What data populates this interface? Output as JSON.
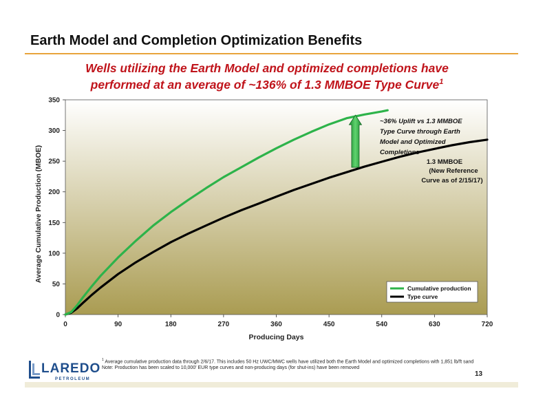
{
  "slide_title": "Earth Model and Completion Optimization Benefits",
  "subtitle_line1": "Wells utilizing the Earth Model and optimized completions have",
  "subtitle_line2": "performed at an average of ~136% of 1.3 MMBOE Type Curve",
  "subtitle_sup": "1",
  "chart_data": {
    "type": "line",
    "xlabel": "Producing Days",
    "ylabel": "Average Cumulative Production (MBOE)",
    "xlim": [
      0,
      720
    ],
    "ylim": [
      0,
      350
    ],
    "xticks": [
      0,
      90,
      180,
      270,
      360,
      450,
      540,
      630,
      720
    ],
    "yticks": [
      0,
      50,
      100,
      150,
      200,
      250,
      300,
      350
    ],
    "grid": false,
    "legend_position": "bottom-right",
    "series": [
      {
        "name": "Cumulative production",
        "color": "#2db34a",
        "x": [
          0,
          10,
          20,
          30,
          45,
          60,
          90,
          120,
          150,
          180,
          210,
          240,
          270,
          300,
          330,
          360,
          390,
          420,
          450,
          480,
          510,
          540,
          550
        ],
        "y": [
          0,
          4,
          15,
          28,
          46,
          63,
          93,
          120,
          145,
          167,
          187,
          206,
          224,
          240,
          256,
          271,
          285,
          298,
          310,
          320,
          326,
          331,
          333
        ]
      },
      {
        "name": "Type curve",
        "color": "#000000",
        "x": [
          0,
          10,
          20,
          30,
          45,
          60,
          90,
          120,
          150,
          180,
          210,
          240,
          270,
          300,
          330,
          360,
          390,
          420,
          450,
          480,
          510,
          540,
          570,
          600,
          630,
          660,
          690,
          720
        ],
        "y": [
          0,
          3,
          10,
          19,
          32,
          44,
          66,
          85,
          102,
          118,
          132,
          145,
          158,
          170,
          181,
          192,
          203,
          213,
          223,
          232,
          241,
          249,
          257,
          264,
          270,
          276,
          281,
          285
        ]
      }
    ],
    "annotations": {
      "uplift_label": [
        "~36% Uplift vs 1.3 MMBOE",
        "Type Curve through Earth",
        "Model and Optimized",
        "Completions"
      ],
      "type_curve_label": [
        "1.3 MMBOE",
        "(New Reference",
        "Curve as of 2/15/17)"
      ],
      "uplift_arrow": {
        "x": 495,
        "y_from": 240,
        "y_to": 325
      }
    }
  },
  "footnote_1": "Average cumulative production data through 2/6/17. This includes 50 Hz UWC/MWC wells have utilized both the Earth Model and optimized completions with 1,851 lb/ft sand",
  "footnote_1_sup": "1",
  "footnote_2": "Note: Production has been scaled to 10,000' EUR type curves and non-producing days (for shut-ins) have been removed",
  "page_number": "13",
  "logo": {
    "word": "LAREDO",
    "sub": "PETROLEUM"
  },
  "colors": {
    "title_rule": "#e8a33a",
    "subtitle": "#c0141b",
    "plot_bg_top": "#ffffff",
    "plot_bg_bottom": "#aa9c52",
    "logo_blue": "#1f4e8c"
  }
}
